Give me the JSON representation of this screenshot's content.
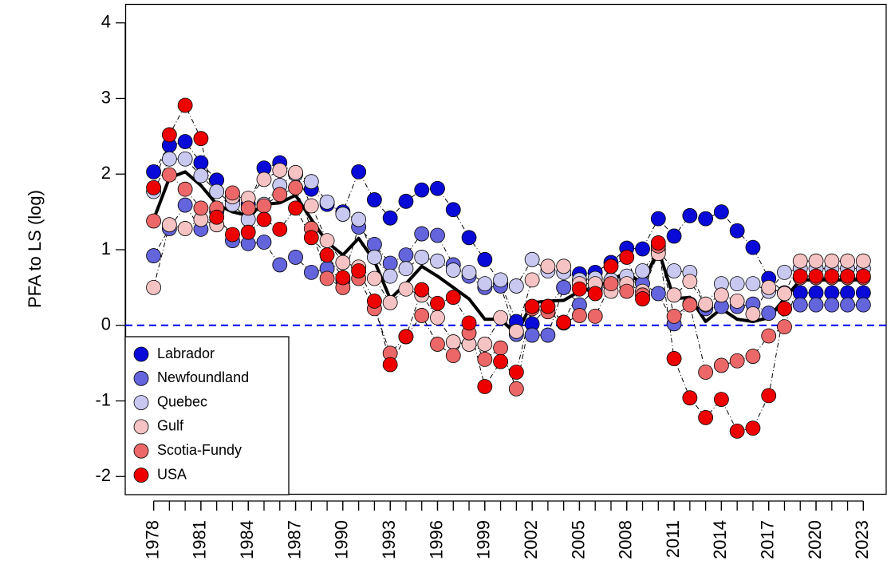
{
  "chart_data": {
    "type": "scatter",
    "y_label": "PFA to LS (log)",
    "x": [
      1978,
      1979,
      1980,
      1981,
      1982,
      1983,
      1984,
      1985,
      1986,
      1987,
      1988,
      1989,
      1990,
      1991,
      1992,
      1993,
      1994,
      1995,
      1996,
      1997,
      1998,
      1999,
      2000,
      2001,
      2002,
      2003,
      2004,
      2005,
      2006,
      2007,
      2008,
      2009,
      2010,
      2011,
      2012,
      2013,
      2014,
      2015,
      2016,
      2017,
      2018,
      2019,
      2020,
      2021,
      2022,
      2023
    ],
    "xlim": [
      1976.2,
      2024.5
    ],
    "xticks": [
      1978,
      1981,
      1984,
      1987,
      1990,
      1993,
      1996,
      1999,
      2002,
      2005,
      2008,
      2011,
      2014,
      2017,
      2020,
      2023
    ],
    "ylim": [
      -2.24,
      4.25
    ],
    "yticks": [
      -2,
      -1,
      0,
      1,
      2,
      3,
      4
    ],
    "hline": 0,
    "hline_color": "#0000ee",
    "legend": "bottomleft",
    "series": [
      {
        "name": "Labrador",
        "color": "#0a0ad8",
        "values": [
          2.03,
          2.38,
          2.43,
          2.15,
          1.92,
          1.65,
          1.6,
          2.08,
          2.15,
          2.0,
          1.8,
          1.6,
          1.5,
          2.03,
          1.66,
          1.42,
          1.64,
          1.79,
          1.81,
          1.53,
          1.16,
          0.87,
          0.55,
          0.05,
          0.02,
          0.25,
          0.5,
          0.68,
          0.7,
          0.83,
          1.02,
          1.01,
          1.41,
          1.18,
          1.45,
          1.41,
          1.5,
          1.25,
          1.03,
          0.62,
          0.43,
          0.43,
          0.43,
          0.43,
          0.43,
          0.43
        ]
      },
      {
        "name": "Newfoundland",
        "color": "#6464dc",
        "values": [
          0.92,
          1.28,
          1.59,
          1.27,
          1.5,
          1.12,
          1.08,
          1.1,
          0.8,
          0.9,
          0.7,
          0.75,
          0.6,
          1.3,
          1.07,
          0.82,
          0.93,
          1.21,
          1.19,
          0.8,
          0.65,
          0.5,
          0.52,
          -0.12,
          -0.13,
          -0.13,
          0.5,
          0.27,
          0.48,
          0.55,
          0.6,
          0.55,
          0.42,
          0.02,
          0.28,
          0.22,
          0.25,
          0.25,
          0.28,
          0.16,
          0.22,
          0.27,
          0.27,
          0.27,
          0.27,
          0.27
        ]
      },
      {
        "name": "Quebec",
        "color": "#c8c8f0",
        "values": [
          1.77,
          2.2,
          2.2,
          1.98,
          1.77,
          1.6,
          1.4,
          1.6,
          1.85,
          2.0,
          1.9,
          1.63,
          1.47,
          1.4,
          0.9,
          0.65,
          0.75,
          0.9,
          0.85,
          0.73,
          0.7,
          0.55,
          0.6,
          0.52,
          0.87,
          0.72,
          0.7,
          0.6,
          0.62,
          0.6,
          0.65,
          0.72,
          1.0,
          0.72,
          0.7,
          0.27,
          0.55,
          0.55,
          0.55,
          0.45,
          0.7,
          0.75,
          0.75,
          0.75,
          0.75,
          0.75
        ]
      },
      {
        "name": "Gulf",
        "color": "#f5c3c3",
        "values": [
          0.5,
          1.33,
          1.28,
          1.4,
          1.33,
          1.7,
          1.68,
          1.93,
          2.05,
          2.02,
          1.58,
          1.12,
          0.83,
          0.77,
          0.62,
          0.3,
          0.48,
          0.4,
          0.1,
          -0.22,
          -0.25,
          -0.25,
          0.1,
          -0.08,
          0.6,
          0.78,
          0.78,
          0.55,
          0.55,
          0.45,
          0.55,
          0.45,
          0.95,
          0.4,
          0.58,
          0.28,
          0.4,
          0.32,
          0.15,
          0.5,
          0.42,
          0.85,
          0.85,
          0.85,
          0.85,
          0.85
        ]
      },
      {
        "name": "Scotia-Fundy",
        "color": "#ec6868",
        "values": [
          1.38,
          1.99,
          1.8,
          1.55,
          1.55,
          1.75,
          1.55,
          1.58,
          1.73,
          1.82,
          1.28,
          0.62,
          0.5,
          0.62,
          0.22,
          -0.37,
          -0.15,
          0.13,
          -0.25,
          -0.4,
          -0.1,
          -0.45,
          -0.3,
          -0.84,
          0.22,
          0.18,
          0.03,
          0.13,
          0.12,
          0.55,
          0.45,
          0.4,
          1.05,
          0.12,
          0.27,
          -0.62,
          -0.53,
          -0.47,
          -0.41,
          -0.14,
          -0.02,
          0.63,
          0.63,
          0.63,
          0.63,
          0.63
        ]
      },
      {
        "name": "USA",
        "color": "#ee0000",
        "values": [
          1.82,
          2.52,
          2.91,
          2.47,
          1.43,
          1.2,
          1.23,
          1.4,
          1.27,
          1.55,
          1.16,
          0.93,
          0.63,
          0.72,
          0.32,
          -0.52,
          -0.15,
          0.47,
          0.29,
          0.37,
          0.03,
          -0.81,
          -0.48,
          -0.62,
          0.25,
          0.25,
          0.04,
          0.48,
          0.42,
          0.78,
          0.9,
          0.35,
          1.09,
          -0.44,
          -0.96,
          -1.22,
          -0.98,
          -1.4,
          -1.36,
          -0.93,
          0.22,
          0.65,
          0.65,
          0.65,
          0.65,
          0.65
        ]
      },
      {
        "color": "#000000",
        "values": [
          1.4,
          1.95,
          2.03,
          1.85,
          1.6,
          1.5,
          1.45,
          1.6,
          1.62,
          1.72,
          1.4,
          1.1,
          0.93,
          1.15,
          0.85,
          0.35,
          0.55,
          0.78,
          0.65,
          0.5,
          0.35,
          0.08,
          0.08,
          -0.12,
          0.3,
          0.32,
          0.33,
          0.45,
          0.5,
          0.6,
          0.7,
          0.55,
          1.0,
          0.35,
          0.37,
          0.05,
          0.22,
          0.08,
          0.05,
          0.1,
          0.35,
          0.6,
          0.6,
          0.6,
          0.6,
          0.6
        ]
      }
    ]
  }
}
